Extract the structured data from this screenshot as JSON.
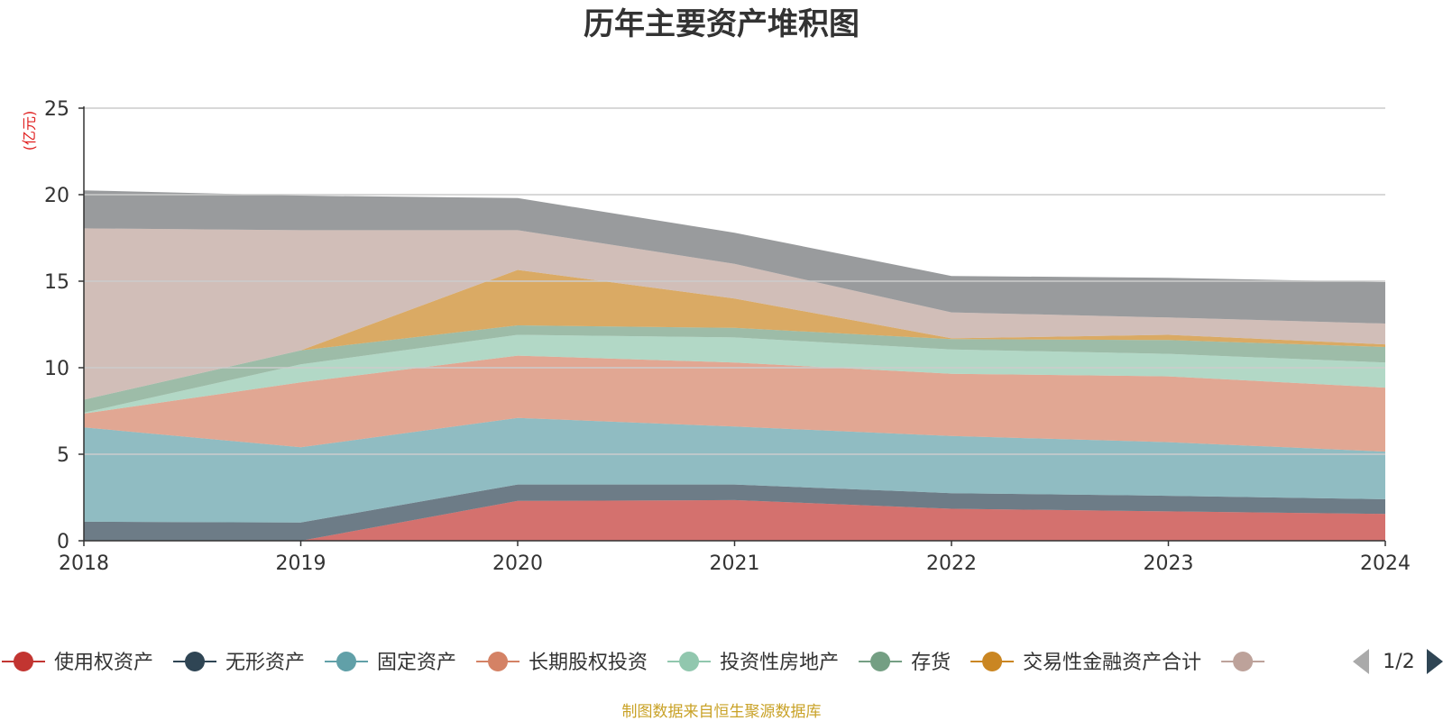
{
  "chart_data": {
    "type": "area",
    "stacked": true,
    "title": "历年主要资产堆积图",
    "unit_label": "(亿元)",
    "x": [
      "2018",
      "2019",
      "2020",
      "2021",
      "2022",
      "2023",
      "2024"
    ],
    "ylim": [
      0,
      25
    ],
    "yticks": [
      0,
      5,
      10,
      15,
      20,
      25
    ],
    "grid": true,
    "series": [
      {
        "name": "使用权资产",
        "color": "#c23531",
        "legend_color": "#c23531",
        "values": [
          0,
          0,
          2.3,
          2.35,
          1.85,
          1.7,
          1.55
        ]
      },
      {
        "name": "无形资产",
        "color": "#2f4554",
        "legend_color": "#2f4554",
        "values": [
          1.1,
          1.05,
          0.95,
          0.9,
          0.9,
          0.9,
          0.85
        ]
      },
      {
        "name": "固定资产",
        "color": "#61a0a8",
        "legend_color": "#61a0a8",
        "values": [
          5.45,
          4.35,
          3.85,
          3.35,
          3.3,
          3.1,
          2.75
        ]
      },
      {
        "name": "长期股权投资",
        "color": "#d48265",
        "legend_color": "#d48265",
        "values": [
          0.8,
          3.75,
          3.6,
          3.7,
          3.6,
          3.8,
          3.7
        ]
      },
      {
        "name": "投资性房地产",
        "color": "#91c7ae",
        "legend_color": "#91c7ae",
        "values": [
          0.05,
          1.05,
          1.2,
          1.45,
          1.4,
          1.3,
          1.45
        ]
      },
      {
        "name": "存货",
        "color": "#749f83",
        "legend_color": "#749f83",
        "values": [
          0.75,
          0.8,
          0.55,
          0.55,
          0.6,
          0.8,
          0.9
        ]
      },
      {
        "name": "交易性金融资产合计",
        "color": "#ca8622",
        "legend_color": "#ca8622",
        "values": [
          0,
          0,
          3.2,
          1.7,
          0.05,
          0.3,
          0.15
        ]
      },
      {
        "name": "",
        "color": "#bda29a",
        "legend_color": "#bda29a",
        "values": [
          9.9,
          6.95,
          2.3,
          2.0,
          1.5,
          1.0,
          1.2
        ]
      },
      {
        "name": "",
        "color": "#6e7074",
        "legend_color": null,
        "values": [
          2.2,
          2.0,
          1.85,
          1.8,
          2.1,
          2.3,
          2.4
        ]
      }
    ]
  },
  "legend": {
    "page": "1/2"
  },
  "source_text": "制图数据来自恒生聚源数据库"
}
